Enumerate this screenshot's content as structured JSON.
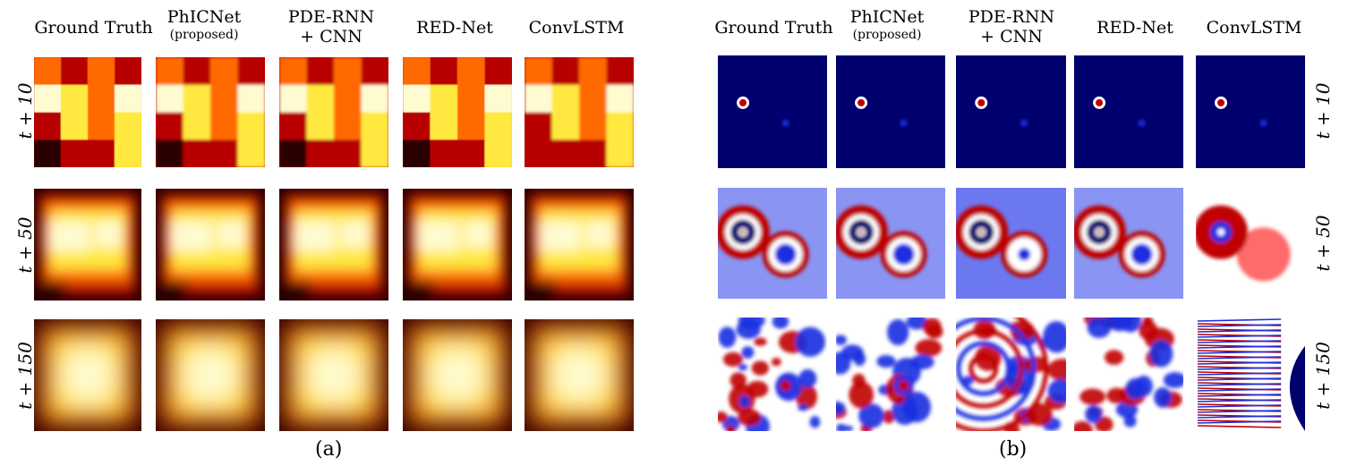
{
  "panel_a": {
    "caption": "(a)",
    "columns": [
      {
        "title": "Ground Truth",
        "sub": ""
      },
      {
        "title": "PhICNet",
        "sub": "(proposed)"
      },
      {
        "title": "PDE-RNN",
        "title2": "+ CNN",
        "sub": ""
      },
      {
        "title": "RED-Net",
        "sub": ""
      },
      {
        "title": "ConvLSTM",
        "sub": ""
      }
    ],
    "rows": [
      "t + 10",
      "t + 50",
      "t + 150"
    ]
  },
  "panel_b": {
    "caption": "(b)",
    "columns": [
      {
        "title": "Ground Truth",
        "sub": ""
      },
      {
        "title": "PhICNet",
        "sub": "(proposed)"
      },
      {
        "title": "PDE-RNN",
        "title2": "+ CNN",
        "sub": ""
      },
      {
        "title": "RED-Net",
        "sub": ""
      },
      {
        "title": "ConvLSTM",
        "sub": ""
      }
    ],
    "rows": [
      "t + 10",
      "t + 50",
      "t + 150"
    ]
  },
  "colors": {
    "heat_dark": "#2a0000",
    "heat_red": "#b80000",
    "heat_orange": "#ff6a00",
    "heat_yellow": "#ffe840",
    "heat_white": "#fffbd0",
    "wave_navy": "#00006e",
    "wave_blue": "#1a2ee0",
    "wave_white": "#ffffff",
    "wave_red": "#c00000"
  }
}
